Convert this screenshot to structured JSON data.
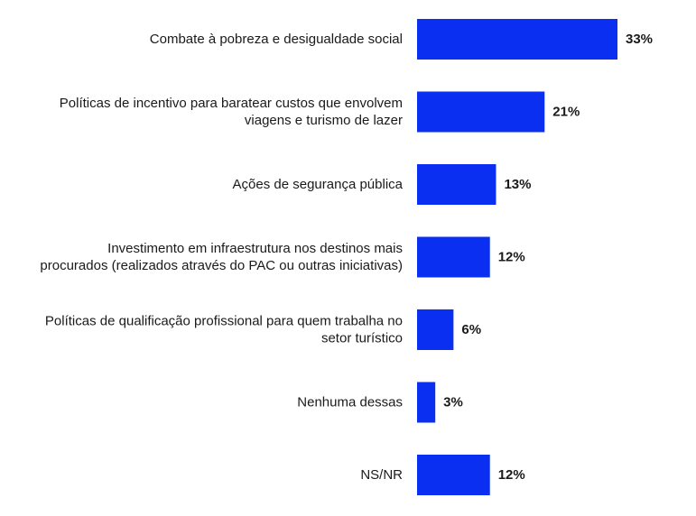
{
  "chart_data": {
    "type": "bar",
    "orientation": "horizontal",
    "categories": [
      "Combate à pobreza e desigualdade social",
      "Políticas de incentivo para baratear custos que envolvem viagens e turismo de lazer",
      "Ações de segurança pública",
      "Investimento em infraestrutura nos destinos mais procurados (realizados através do PAC ou outras iniciativas)",
      "Políticas de qualificação profissional para quem trabalha no setor turístico",
      "Nenhuma dessas",
      "NS/NR"
    ],
    "category_lines": [
      [
        "Combate à pobreza e desigualdade social"
      ],
      [
        "Políticas de incentivo para baratear custos que envolvem",
        "viagens e turismo de lazer"
      ],
      [
        "Ações de segurança pública"
      ],
      [
        "Investimento em infraestrutura nos destinos mais",
        "procurados (realizados através do PAC ou outras iniciativas)"
      ],
      [
        "Políticas de qualificação profissional para quem trabalha no",
        "setor turístico"
      ],
      [
        "Nenhuma dessas"
      ],
      [
        "NS/NR"
      ]
    ],
    "values": [
      33,
      21,
      13,
      12,
      6,
      3,
      12
    ],
    "value_labels": [
      "33%",
      "21%",
      "13%",
      "12%",
      "6%",
      "3%",
      "12%"
    ],
    "unit": "%",
    "xlim": [
      0,
      33
    ],
    "grid": false,
    "legend": "none",
    "bar_color": "#0a2ff0",
    "title": "",
    "xlabel": "",
    "ylabel": ""
  }
}
